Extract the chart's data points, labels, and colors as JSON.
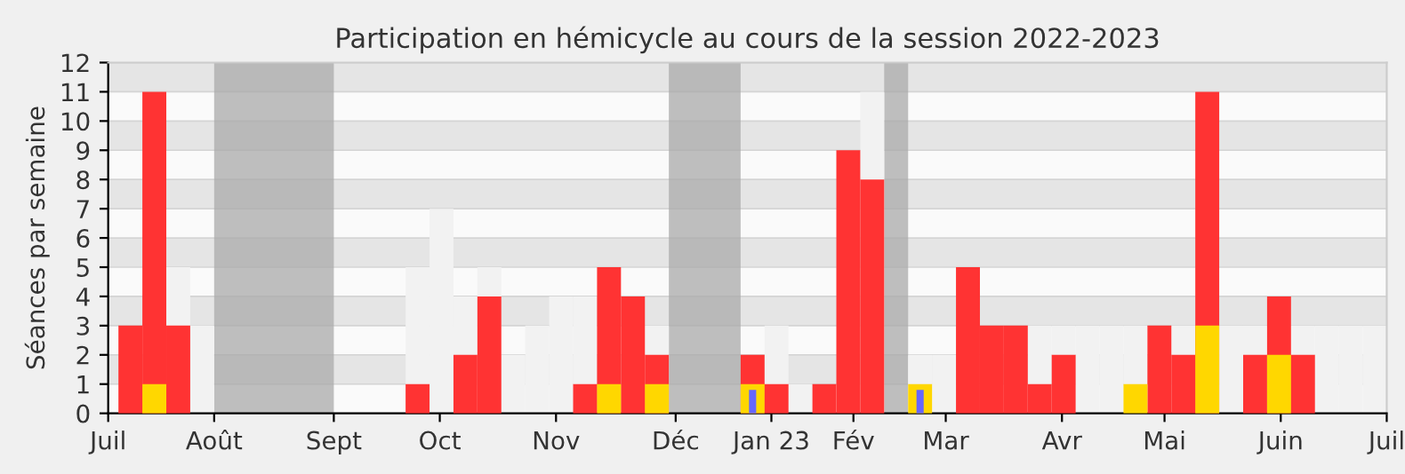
{
  "chart_data": {
    "type": "bar",
    "title": "Participation en hémicycle au cours de la session 2022-2023",
    "ylabel": "Séances par semaine",
    "x": [
      "2022-07-04",
      "2022-07-11",
      "2022-07-18",
      "2022-07-25",
      "2022-08-01",
      "2022-08-08",
      "2022-08-15",
      "2022-08-22",
      "2022-08-29",
      "2022-09-05",
      "2022-09-12",
      "2022-09-19",
      "2022-09-26",
      "2022-10-03",
      "2022-10-10",
      "2022-10-17",
      "2022-10-24",
      "2022-10-31",
      "2022-11-07",
      "2022-11-14",
      "2022-11-21",
      "2022-11-28",
      "2022-12-05",
      "2022-12-12",
      "2022-12-19",
      "2022-12-26",
      "2023-01-02",
      "2023-01-09",
      "2023-01-16",
      "2023-01-23",
      "2023-01-30",
      "2023-02-06",
      "2023-02-13",
      "2023-02-20",
      "2023-02-27",
      "2023-03-06",
      "2023-03-13",
      "2023-03-20",
      "2023-03-27",
      "2023-04-03",
      "2023-04-10",
      "2023-04-17",
      "2023-04-24",
      "2023-05-01",
      "2023-05-08",
      "2023-05-15",
      "2023-05-22",
      "2023-05-29",
      "2023-06-05",
      "2023-06-12",
      "2023-06-19",
      "2023-06-26",
      "2023-07-03"
    ],
    "series": [
      {
        "color": "#f2f2f2",
        "values": [
          null,
          null,
          5,
          3,
          null,
          null,
          null,
          null,
          null,
          null,
          null,
          null,
          5,
          7,
          4,
          5,
          2,
          3,
          4,
          4,
          null,
          null,
          3,
          null,
          null,
          null,
          null,
          3,
          1,
          null,
          null,
          11,
          null,
          2,
          2,
          null,
          null,
          null,
          3,
          3,
          3,
          3,
          3,
          null,
          3,
          null,
          3,
          3,
          null,
          3,
          3,
          3,
          3
        ]
      },
      {
        "color": "#ff3333",
        "values": [
          3,
          11,
          3,
          null,
          null,
          null,
          null,
          null,
          null,
          null,
          null,
          null,
          1,
          null,
          2,
          4,
          null,
          null,
          null,
          1,
          5,
          4,
          2,
          null,
          null,
          null,
          2,
          1,
          null,
          1,
          9,
          8,
          null,
          null,
          null,
          5,
          3,
          3,
          1,
          2,
          null,
          null,
          null,
          3,
          2,
          11,
          null,
          2,
          4,
          2,
          null,
          null,
          null
        ]
      },
      {
        "color": "#ffd700",
        "values": [
          null,
          1,
          null,
          null,
          null,
          null,
          null,
          null,
          null,
          null,
          null,
          null,
          null,
          null,
          null,
          null,
          null,
          null,
          null,
          null,
          1,
          null,
          1,
          null,
          null,
          null,
          1,
          null,
          null,
          null,
          null,
          null,
          null,
          1,
          null,
          null,
          null,
          null,
          null,
          null,
          null,
          null,
          1,
          null,
          null,
          3,
          null,
          null,
          2,
          null,
          null,
          null,
          null
        ]
      },
      {
        "color": "#6666ff",
        "values": [
          null,
          null,
          null,
          null,
          null,
          null,
          null,
          null,
          null,
          null,
          null,
          null,
          null,
          null,
          null,
          null,
          null,
          null,
          null,
          null,
          null,
          null,
          null,
          null,
          null,
          null,
          0.8,
          null,
          null,
          null,
          null,
          null,
          null,
          0.8,
          null,
          null,
          null,
          null,
          null,
          null,
          null,
          null,
          null,
          null,
          null,
          null,
          null,
          null,
          null,
          null,
          null,
          null,
          null
        ]
      }
    ],
    "bands": [
      {
        "axis": "x",
        "from": "2022-08-01",
        "to": "2022-09-05",
        "color": "#aaaaaa"
      },
      {
        "axis": "x",
        "from": "2022-12-12",
        "to": "2023-01-02",
        "color": "#aaaaaa"
      },
      {
        "axis": "x",
        "from": "2023-02-13",
        "to": "2023-02-20",
        "color": "#aaaaaa"
      }
    ],
    "xlim": [
      "2022-07-01",
      "2023-07-10"
    ],
    "xticks": [
      {
        "value": "2022-07-01",
        "label": "Juil"
      },
      {
        "value": "2022-08-01",
        "label": "Août"
      },
      {
        "value": "2022-09-05",
        "label": "Sept"
      },
      {
        "value": "2022-10-06",
        "label": "Oct"
      },
      {
        "value": "2022-11-09",
        "label": "Nov"
      },
      {
        "value": "2022-12-14",
        "label": "Déc"
      },
      {
        "value": "2023-01-11",
        "label": "Jan 23"
      },
      {
        "value": "2023-02-04",
        "label": "Fév"
      },
      {
        "value": "2023-03-03",
        "label": "Mar"
      },
      {
        "value": "2023-04-06",
        "label": "Avr"
      },
      {
        "value": "2023-05-06",
        "label": "Mai"
      },
      {
        "value": "2023-06-09",
        "label": "Juin"
      },
      {
        "value": "2023-07-10",
        "label": "Juil"
      }
    ],
    "ylim": [
      0,
      12
    ],
    "yticks": [
      0,
      1,
      2,
      3,
      4,
      5,
      6,
      7,
      8,
      9,
      10,
      11,
      12
    ],
    "grid": "y",
    "legend": false
  }
}
